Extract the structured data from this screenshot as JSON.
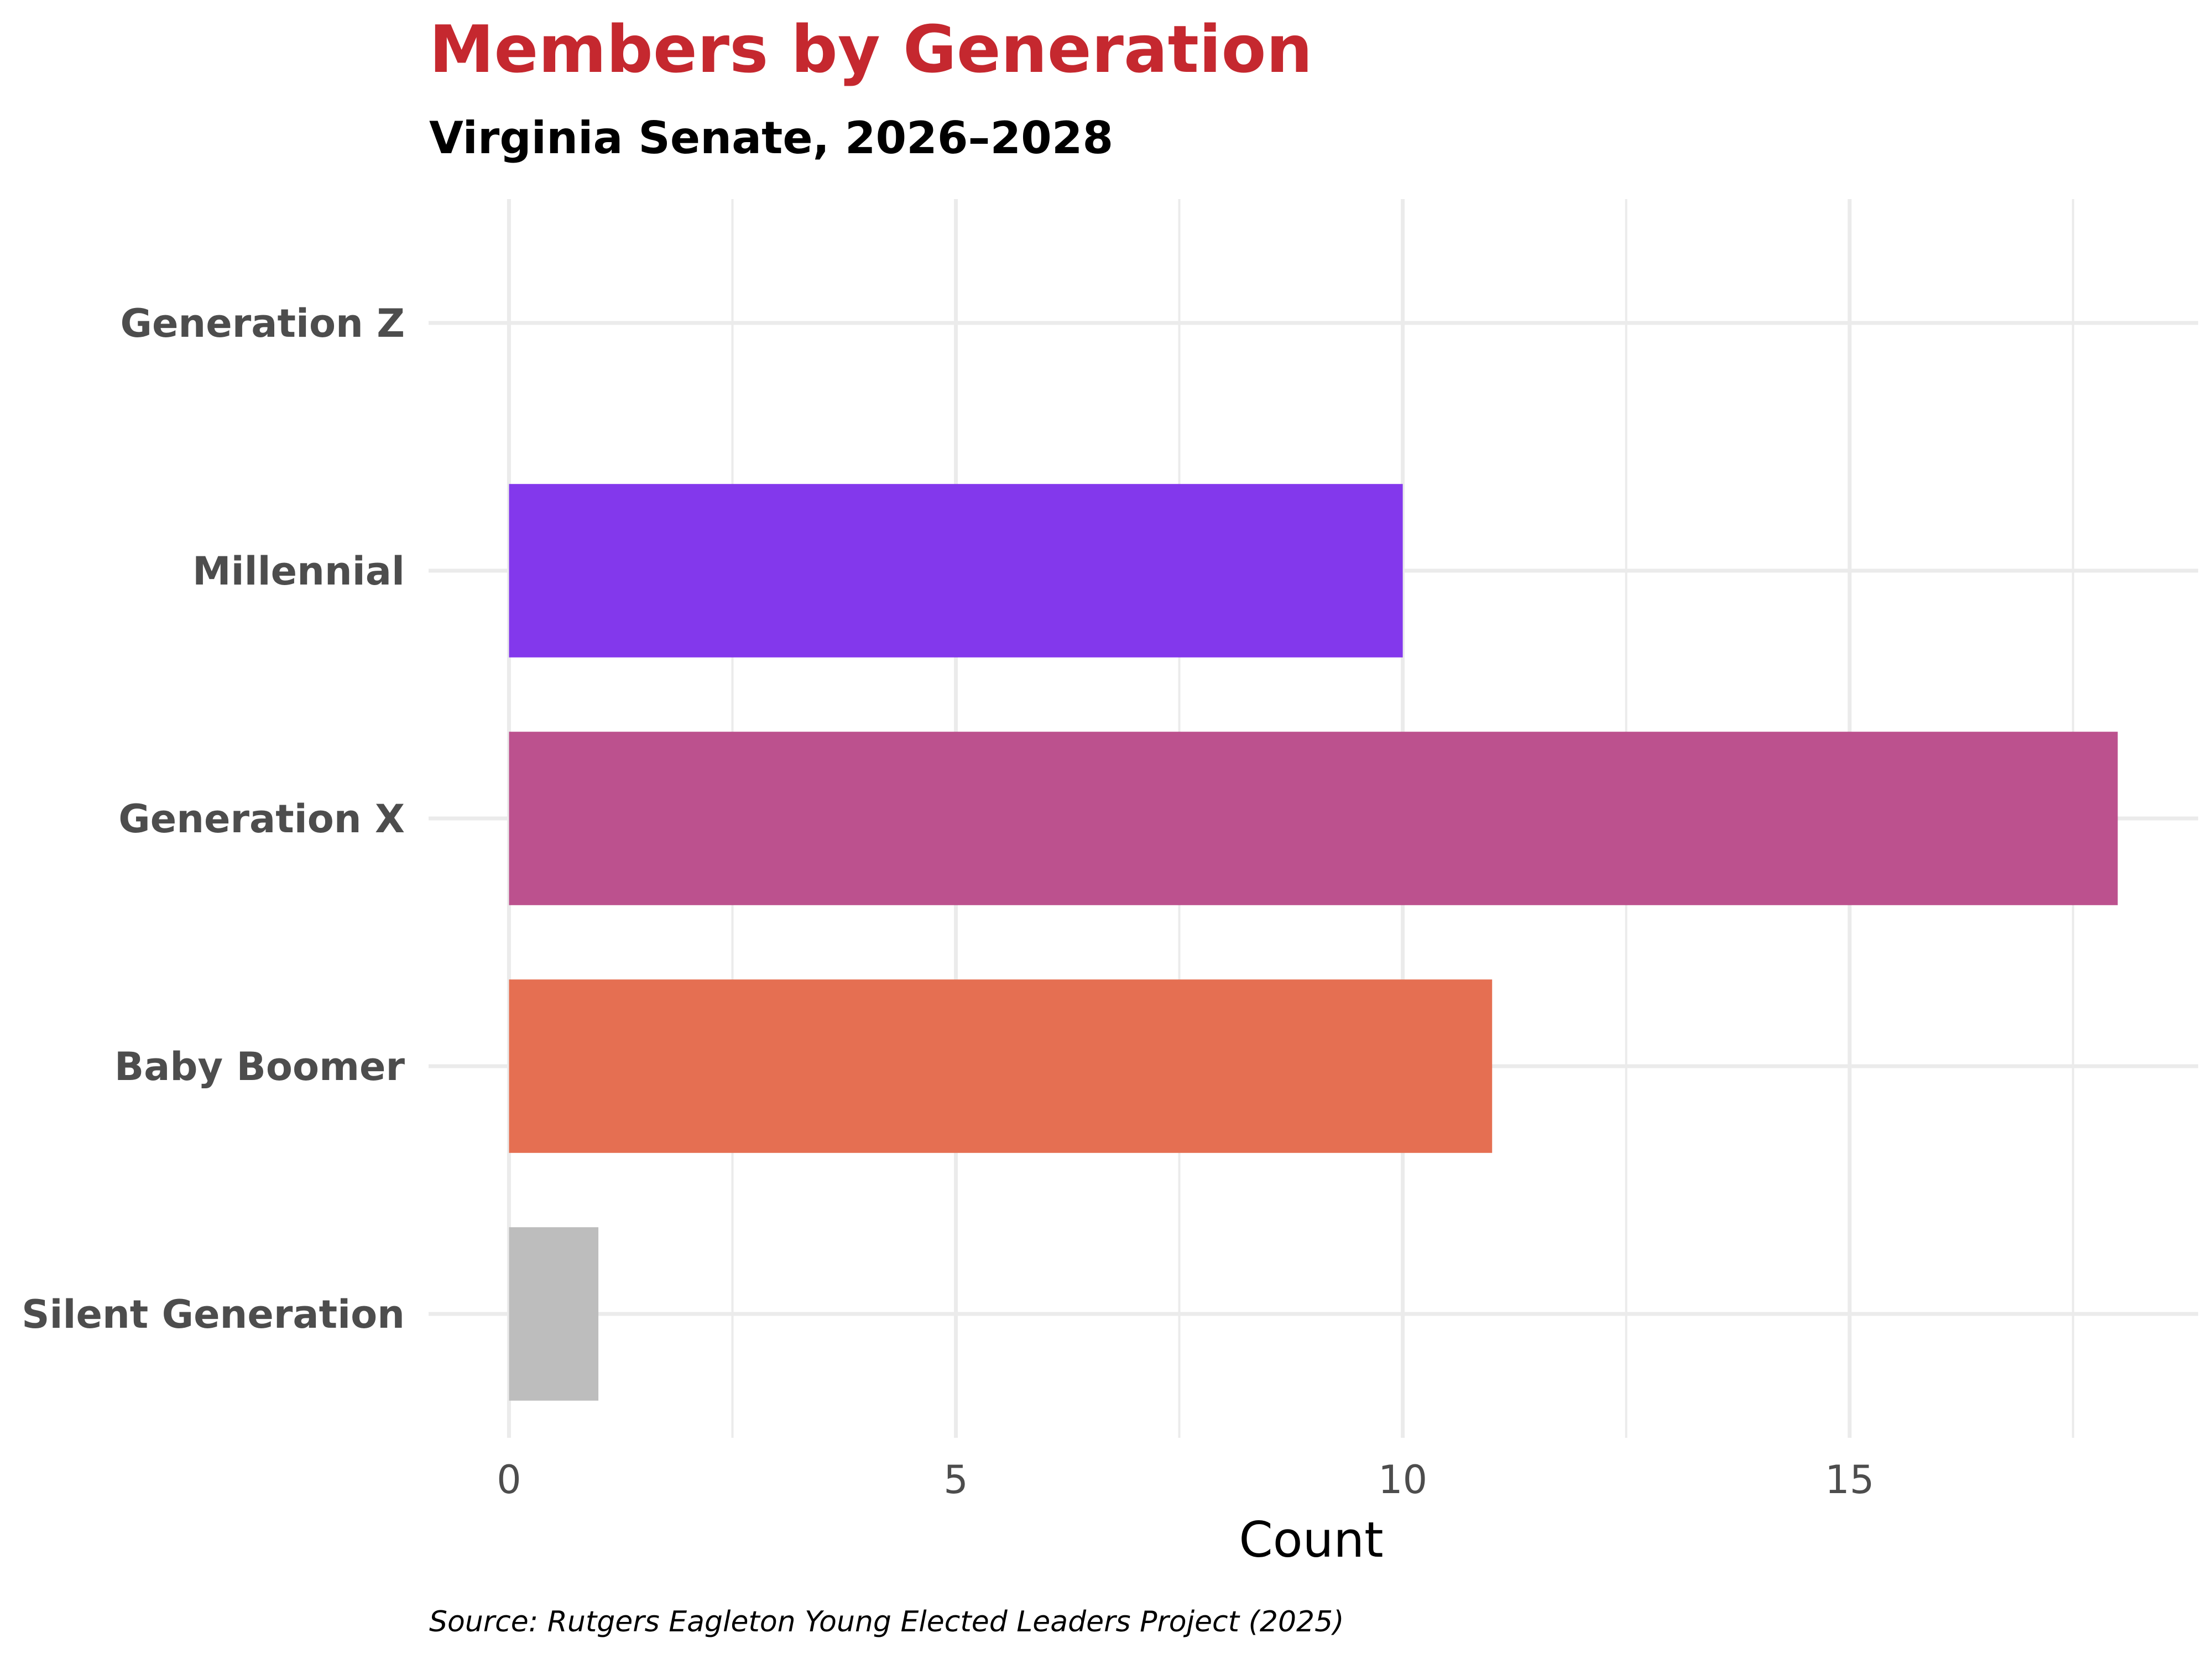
{
  "chart_data": {
    "type": "bar",
    "orientation": "horizontal",
    "title": "Members by Generation",
    "subtitle": "Virginia Senate, 2026–2028",
    "xlabel": "Count",
    "ylabel": "",
    "caption": "Source: Rutgers Eagleton Young Elected Leaders Project (2025)",
    "categories": [
      "Generation Z",
      "Millennial",
      "Generation X",
      "Baby Boomer",
      "Silent Generation"
    ],
    "values": [
      0,
      10,
      18,
      11,
      1
    ],
    "colors": [
      "#b8b8b8",
      "#8338ec",
      "#bc518e",
      "#e56f52",
      "#bdbdbd"
    ],
    "x_ticks": [
      0,
      5,
      10,
      15
    ],
    "x_tick_labels": [
      "0",
      "5",
      "10",
      "15"
    ],
    "xlim": [
      -0.9,
      18.9
    ],
    "grid": true,
    "legend": "none"
  },
  "colors": {
    "title": "#c5282f",
    "grid": "#ebebeb",
    "label": "#4d4d4d"
  }
}
